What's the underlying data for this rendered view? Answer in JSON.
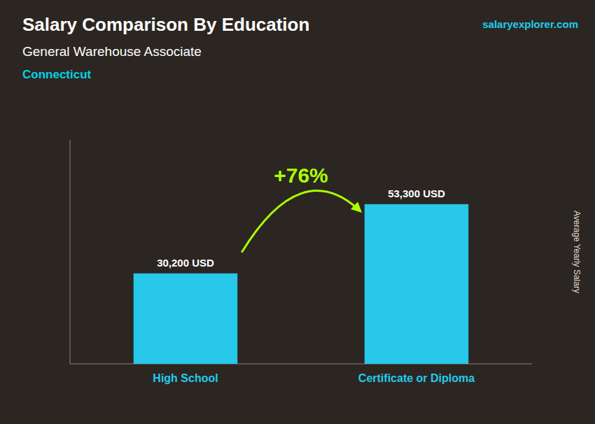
{
  "chart_data": {
    "type": "bar",
    "title": "Salary Comparison By Education",
    "subtitle": "General Warehouse Associate",
    "ylabel": "Average Yearly Salary",
    "annotations": [
      "Connecticut",
      "salaryexplorer.com",
      "+76%"
    ],
    "categories": [
      "High School",
      "Certificate or Diploma"
    ],
    "values": [
      30200,
      53300
    ],
    "value_labels": [
      "30,200 USD",
      "53,300 USD"
    ],
    "data_labels": true,
    "color": "#28c8eb",
    "ylim": [
      0,
      74750
    ],
    "tick_labels": false,
    "grid": false
  }
}
